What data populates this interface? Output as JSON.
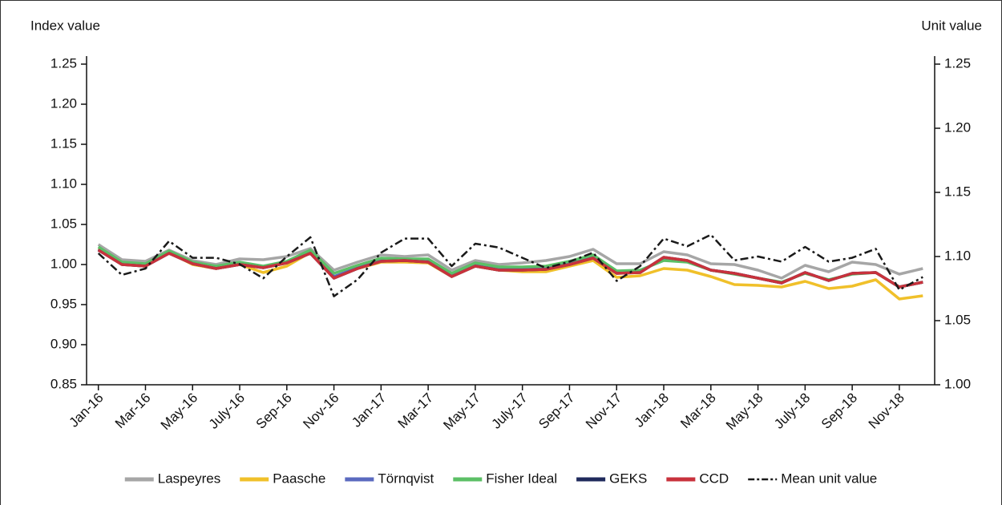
{
  "chart_data": {
    "type": "line",
    "ylabel": "Index value",
    "y2label": "Unit value",
    "categories": [
      "Jan-16",
      null,
      "Mar-16",
      null,
      "May-16",
      null,
      "July-16",
      null,
      "Sep-16",
      null,
      "Nov-16",
      null,
      "Jan-17",
      null,
      "Mar-17",
      null,
      "May-17",
      null,
      "July-17",
      null,
      "Sep-17",
      null,
      "Nov-17",
      null,
      "Jan-18",
      null,
      "Mar-18",
      null,
      "May-18",
      null,
      "July-18",
      null,
      "Sep-18",
      null,
      "Nov-18",
      null
    ],
    "ylim": [
      0.85,
      1.25
    ],
    "yticks": [
      0.85,
      {
        "value": 0.9,
        "label": "0.90"
      },
      0.95,
      {
        "value": 1.0,
        "label": "1.00"
      },
      1.05,
      {
        "value": 1.1,
        "label": "1.10"
      },
      1.15,
      {
        "value": 1.2,
        "label": "1.20"
      },
      1.25
    ],
    "y2lim": [
      1.0,
      1.25
    ],
    "y2ticks": [
      {
        "value": 1.0,
        "label": "1.00"
      },
      1.05,
      {
        "value": 1.1,
        "label": "1.10"
      },
      1.15,
      {
        "value": 1.2,
        "label": "1.20"
      },
      1.25
    ],
    "legend": "bottom",
    "series": [
      {
        "name": "Laspeyres",
        "color": "#a6a6a6",
        "values": [
          1.025,
          1.006,
          1.004,
          1.018,
          1.005,
          1.0,
          1.007,
          1.006,
          1.01,
          1.02,
          0.993,
          1.003,
          1.012,
          1.01,
          1.012,
          0.993,
          1.005,
          1.0,
          1.002,
          1.005,
          1.01,
          1.019,
          1.001,
          1.001,
          1.016,
          1.012,
          1.001,
          1.0,
          0.993,
          0.983,
          0.999,
          0.991,
          1.003,
          1.0,
          0.988,
          0.995
        ]
      },
      {
        "name": "Paasche",
        "color": "#f0c02a",
        "values": [
          1.02,
          1.0,
          0.998,
          1.015,
          1.0,
          0.995,
          1.0,
          0.99,
          0.998,
          1.015,
          0.985,
          0.995,
          1.003,
          1.003,
          1.002,
          0.985,
          0.998,
          0.993,
          0.991,
          0.991,
          0.998,
          1.005,
          0.984,
          0.986,
          0.995,
          0.993,
          0.985,
          0.975,
          0.974,
          0.972,
          0.979,
          0.97,
          0.973,
          0.981,
          0.957,
          0.961
        ]
      },
      {
        "name": "Törnqvist",
        "color": "#5b6abf",
        "values": [
          1.019,
          1.001,
          0.999,
          1.015,
          1.002,
          0.996,
          1.001,
          0.997,
          1.003,
          1.015,
          0.985,
          0.996,
          1.005,
          1.006,
          1.004,
          0.986,
          0.999,
          0.994,
          0.994,
          0.995,
          1.001,
          1.009,
          0.99,
          0.991,
          1.008,
          1.004,
          0.993,
          0.989,
          0.983,
          0.977,
          0.99,
          0.98,
          0.989,
          0.99,
          0.972,
          0.978
        ]
      },
      {
        "name": "Fisher Ideal",
        "color": "#5cbf66",
        "values": [
          1.022,
          1.003,
          1.001,
          1.017,
          1.003,
          0.998,
          1.003,
          0.998,
          1.004,
          1.018,
          0.989,
          0.999,
          1.008,
          1.007,
          1.007,
          0.989,
          1.002,
          0.997,
          0.997,
          0.998,
          1.004,
          1.012,
          0.992,
          0.993,
          1.005,
          1.003,
          0.993,
          0.988,
          0.983,
          0.978,
          0.989,
          0.981,
          0.988,
          0.99,
          0.972,
          0.978
        ]
      },
      {
        "name": "GEKS",
        "color": "#1f2a5c",
        "values": [
          1.018,
          1.0,
          0.998,
          1.014,
          1.001,
          0.995,
          1.0,
          0.996,
          1.002,
          1.014,
          0.983,
          0.995,
          1.004,
          1.005,
          1.003,
          0.985,
          0.998,
          0.993,
          0.993,
          0.994,
          1.0,
          1.008,
          0.989,
          0.99,
          1.009,
          1.005,
          0.993,
          0.989,
          0.983,
          0.977,
          0.99,
          0.98,
          0.989,
          0.99,
          0.972,
          0.978
        ]
      },
      {
        "name": "CCD",
        "color": "#c8323c",
        "values": [
          1.018,
          1.0,
          0.998,
          1.014,
          1.001,
          0.995,
          1.0,
          0.996,
          1.002,
          1.014,
          0.983,
          0.995,
          1.004,
          1.005,
          1.003,
          0.985,
          0.998,
          0.993,
          0.993,
          0.994,
          1.0,
          1.008,
          0.989,
          0.99,
          1.009,
          1.005,
          0.993,
          0.989,
          0.983,
          0.977,
          0.99,
          0.98,
          0.989,
          0.99,
          0.972,
          0.978
        ]
      },
      {
        "name": "Mean unit value",
        "color": "#1a1a1a",
        "axis": "y2",
        "line_style": "dash-dot",
        "values": [
          1.1025,
          1.0856,
          1.0906,
          1.112,
          1.099,
          1.099,
          1.094,
          1.083,
          1.1,
          1.115,
          1.069,
          1.082,
          1.103,
          1.114,
          1.114,
          1.0925,
          1.11,
          1.107,
          1.099,
          1.091,
          1.096,
          1.103,
          1.081,
          1.0925,
          1.114,
          1.108,
          1.117,
          1.097,
          1.1,
          1.096,
          1.1075,
          1.096,
          1.099,
          1.106,
          1.074,
          1.084
        ]
      }
    ]
  }
}
